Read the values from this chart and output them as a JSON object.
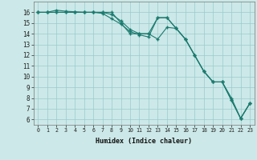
{
  "xlabel": "Humidex (Indice chaleur)",
  "x": [
    0,
    1,
    2,
    3,
    4,
    5,
    6,
    7,
    8,
    9,
    10,
    11,
    12,
    13,
    14,
    15,
    16,
    17,
    18,
    19,
    20,
    21,
    22,
    23
  ],
  "line1": [
    16,
    16,
    16.2,
    16.1,
    16.05,
    16,
    16,
    16,
    15.8,
    15.2,
    14.4,
    14.0,
    14.0,
    13.5,
    14.6,
    14.5,
    13.5,
    12.0,
    10.5,
    9.5,
    9.5,
    7.8,
    6.1,
    7.5
  ],
  "line2": [
    16,
    16,
    16,
    16,
    16,
    16,
    16,
    15.9,
    15.4,
    14.9,
    14.2,
    13.9,
    13.7,
    15.5,
    15.5,
    14.5,
    13.5,
    12.0,
    10.5,
    9.5,
    9.5,
    7.8,
    6.1,
    7.5
  ],
  "line3": [
    16,
    16,
    16,
    16,
    16,
    16,
    16,
    16,
    16,
    15.0,
    14.0,
    14.0,
    14.0,
    15.5,
    15.5,
    14.5,
    13.5,
    12.0,
    10.5,
    9.5,
    9.5,
    8.0,
    6.1,
    7.5
  ],
  "line_color": "#1a7a6e",
  "bg_color": "#cce8e8",
  "grid_color": "#99cccc",
  "xlim": [
    -0.5,
    23.5
  ],
  "ylim": [
    5.5,
    17.0
  ],
  "yticks": [
    6,
    7,
    8,
    9,
    10,
    11,
    12,
    13,
    14,
    15,
    16
  ],
  "xticks": [
    0,
    1,
    2,
    3,
    4,
    5,
    6,
    7,
    8,
    9,
    10,
    11,
    12,
    13,
    14,
    15,
    16,
    17,
    18,
    19,
    20,
    21,
    22,
    23
  ]
}
